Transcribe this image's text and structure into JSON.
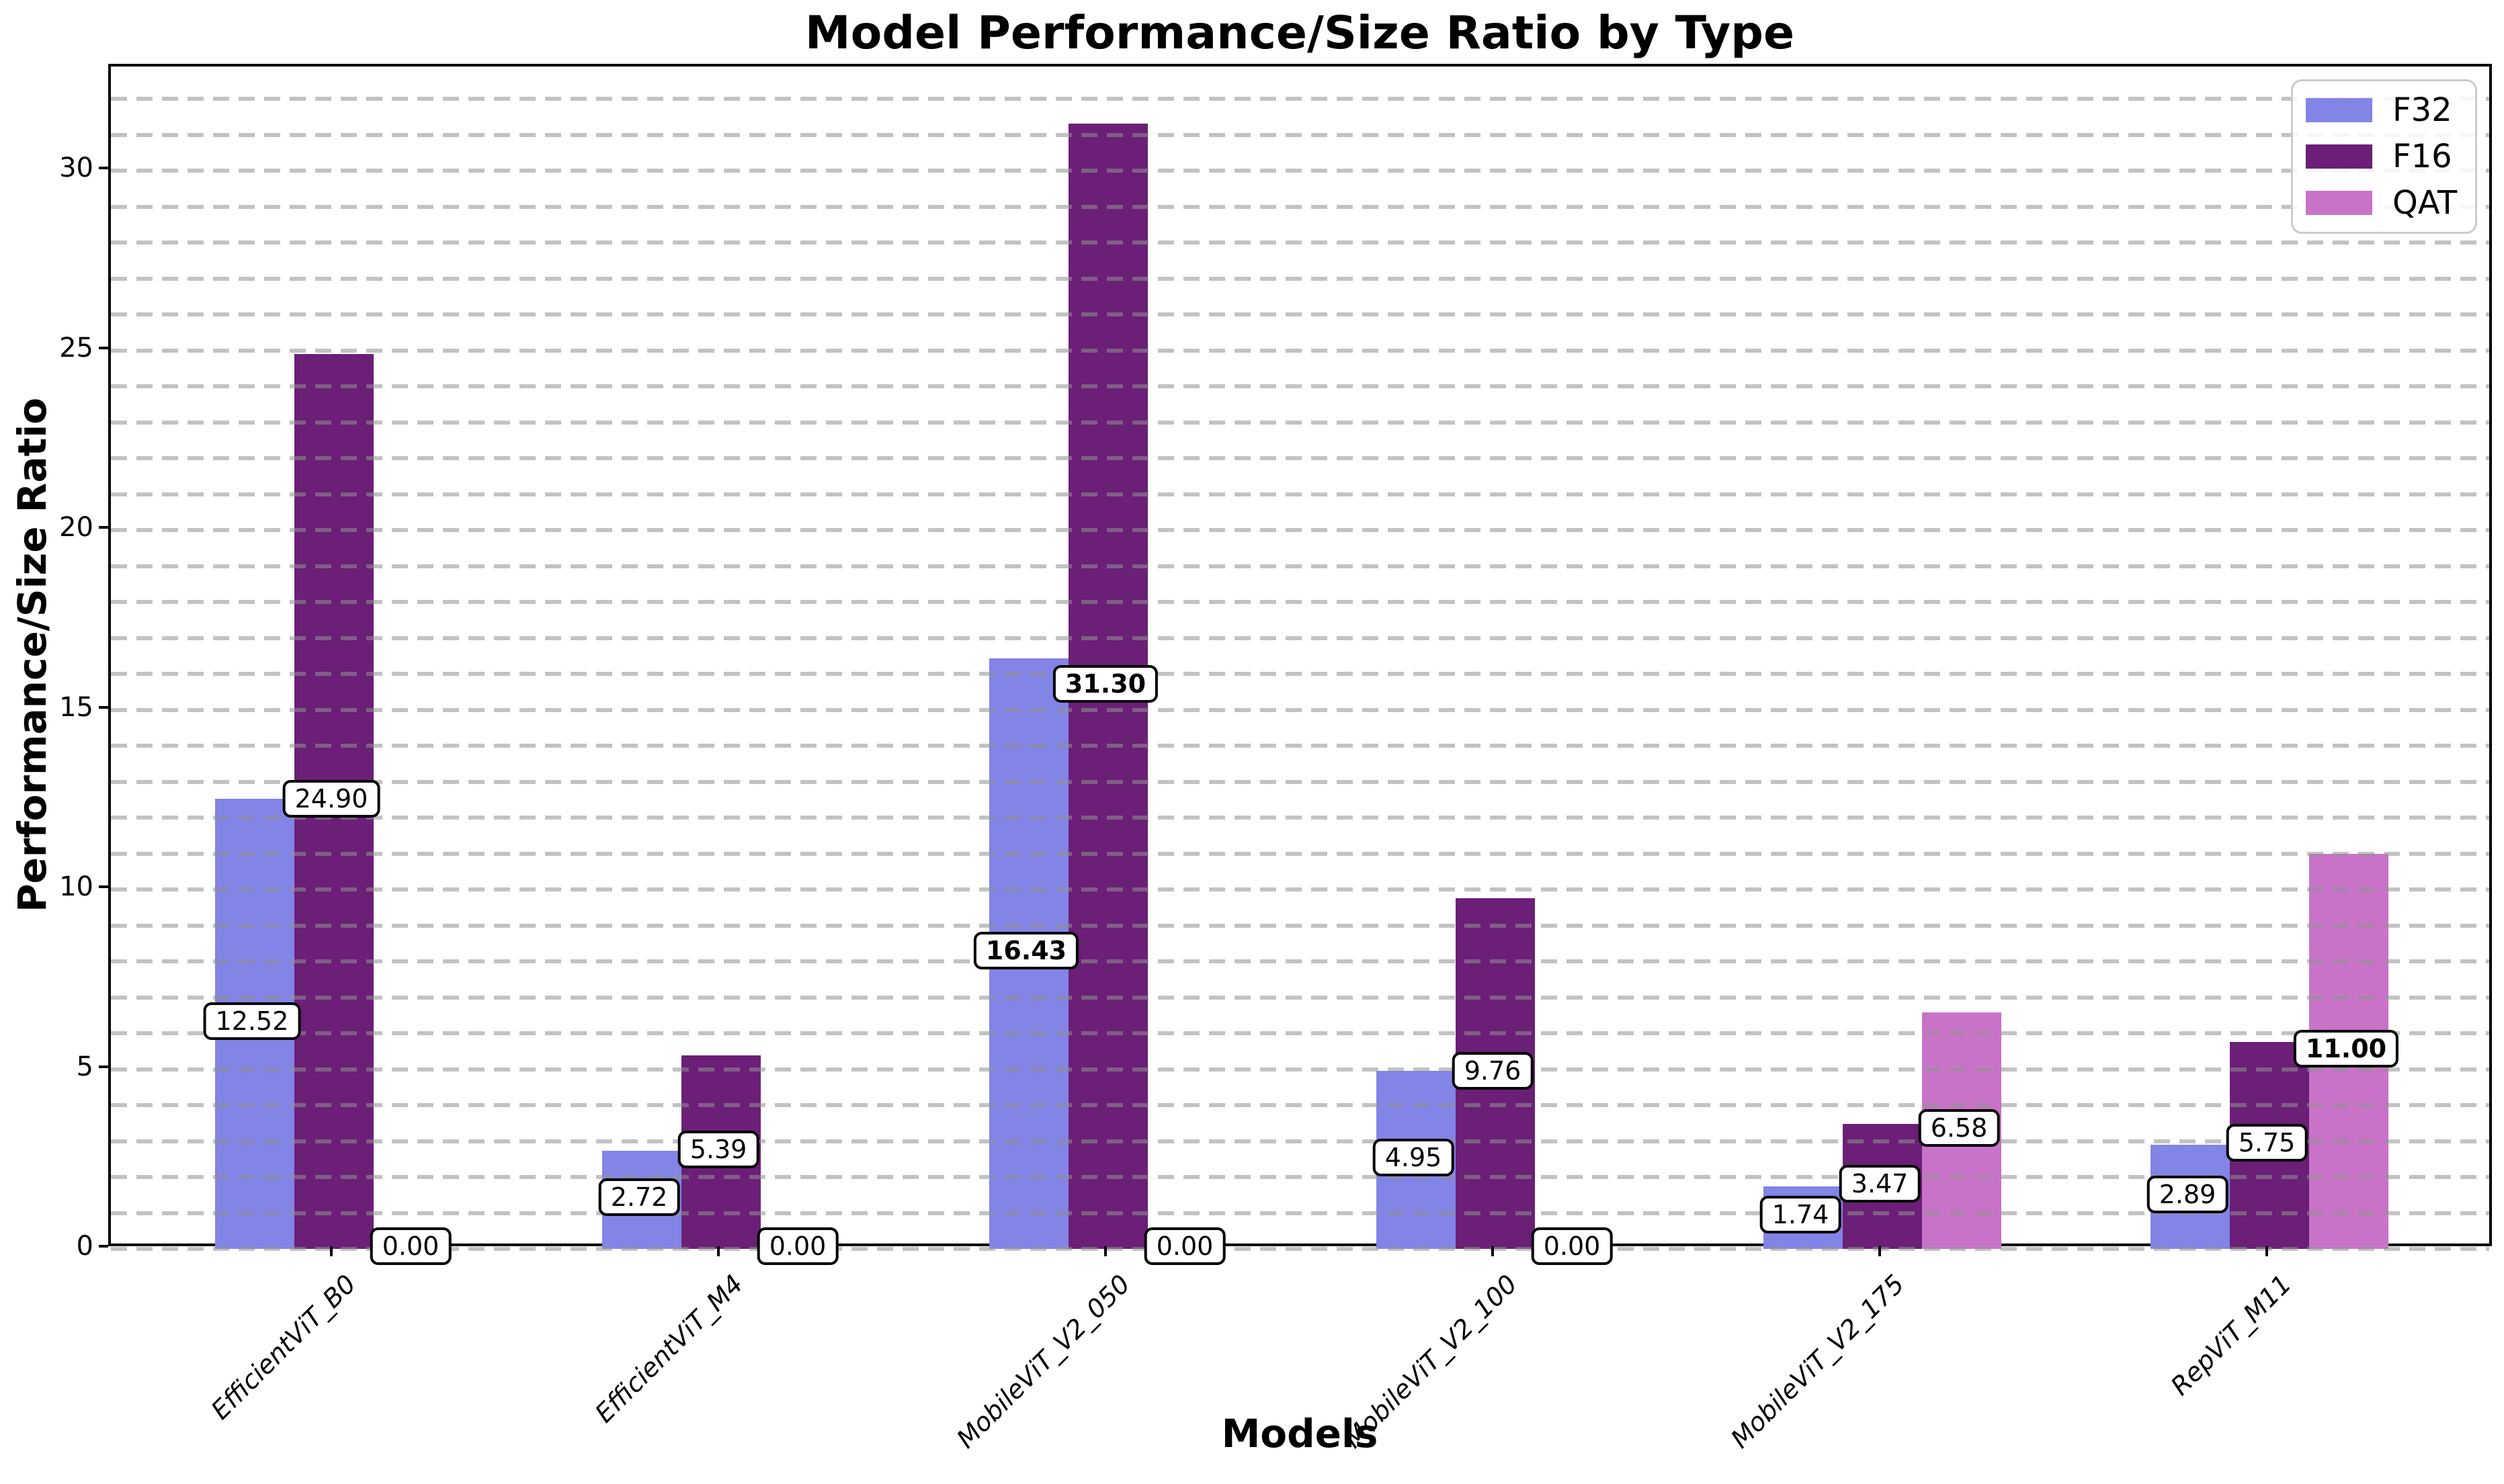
{
  "chart_data": {
    "type": "bar",
    "title": "Model Performance/Size Ratio by Type",
    "xlabel": "Models",
    "ylabel": "Performance/Size Ratio",
    "categories": [
      "EfficientViT_B0",
      "EfficientViT_M4",
      "MobileViT_V2_050",
      "MobileViT_V2_100",
      "MobileViT_V2_175",
      "RepViT_M11"
    ],
    "series": [
      {
        "name": "F32",
        "color": "#8284E6",
        "values": [
          12.52,
          2.72,
          16.43,
          4.95,
          1.74,
          2.89
        ]
      },
      {
        "name": "F16",
        "color": "#6B1F77",
        "values": [
          24.9,
          5.39,
          31.3,
          9.76,
          3.47,
          5.75
        ]
      },
      {
        "name": "QAT",
        "color": "#C873C8",
        "values": [
          0.0,
          0.0,
          0.0,
          0.0,
          6.58,
          11.0
        ]
      }
    ],
    "y_ticks": [
      0,
      5,
      10,
      15,
      20,
      25,
      30
    ],
    "ylim": [
      0,
      32.9
    ],
    "grid": "horizontal dashed, every 1 unit, drawn over bars",
    "legend_position": "upper right",
    "value_label_format": "two decimals in rounded white box",
    "bold_label_rule": "maximum value of each series is bold",
    "background_color": "#ffffff",
    "gridline_color": "#c6c6c6"
  }
}
